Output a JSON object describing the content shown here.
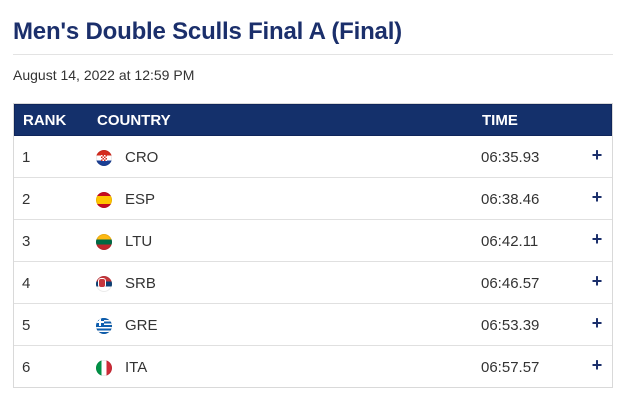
{
  "page": {
    "title": "Men's Double Sculls Final A (Final)",
    "timestamp": "August 14, 2022 at 12:59 PM"
  },
  "table": {
    "headers": {
      "rank": "RANK",
      "country": "COUNTRY",
      "time": "TIME"
    },
    "expand_symbol": "+",
    "rows": [
      {
        "rank": "1",
        "flag": "croatia-flag-icon",
        "country": "CRO",
        "time": "06:35.93"
      },
      {
        "rank": "2",
        "flag": "spain-flag-icon",
        "country": "ESP",
        "time": "06:38.46"
      },
      {
        "rank": "3",
        "flag": "lithuania-flag-icon",
        "country": "LTU",
        "time": "06:42.11"
      },
      {
        "rank": "4",
        "flag": "serbia-flag-icon",
        "country": "SRB",
        "time": "06:46.57"
      },
      {
        "rank": "5",
        "flag": "greece-flag-icon",
        "country": "GRE",
        "time": "06:53.39"
      },
      {
        "rank": "6",
        "flag": "italy-flag-icon",
        "country": "ITA",
        "time": "06:57.57"
      }
    ]
  },
  "colors": {
    "title": "#1b2f6b",
    "header_bg": "#14306b",
    "header_text": "#ffffff",
    "expand_icon": "#1b2f6b"
  }
}
